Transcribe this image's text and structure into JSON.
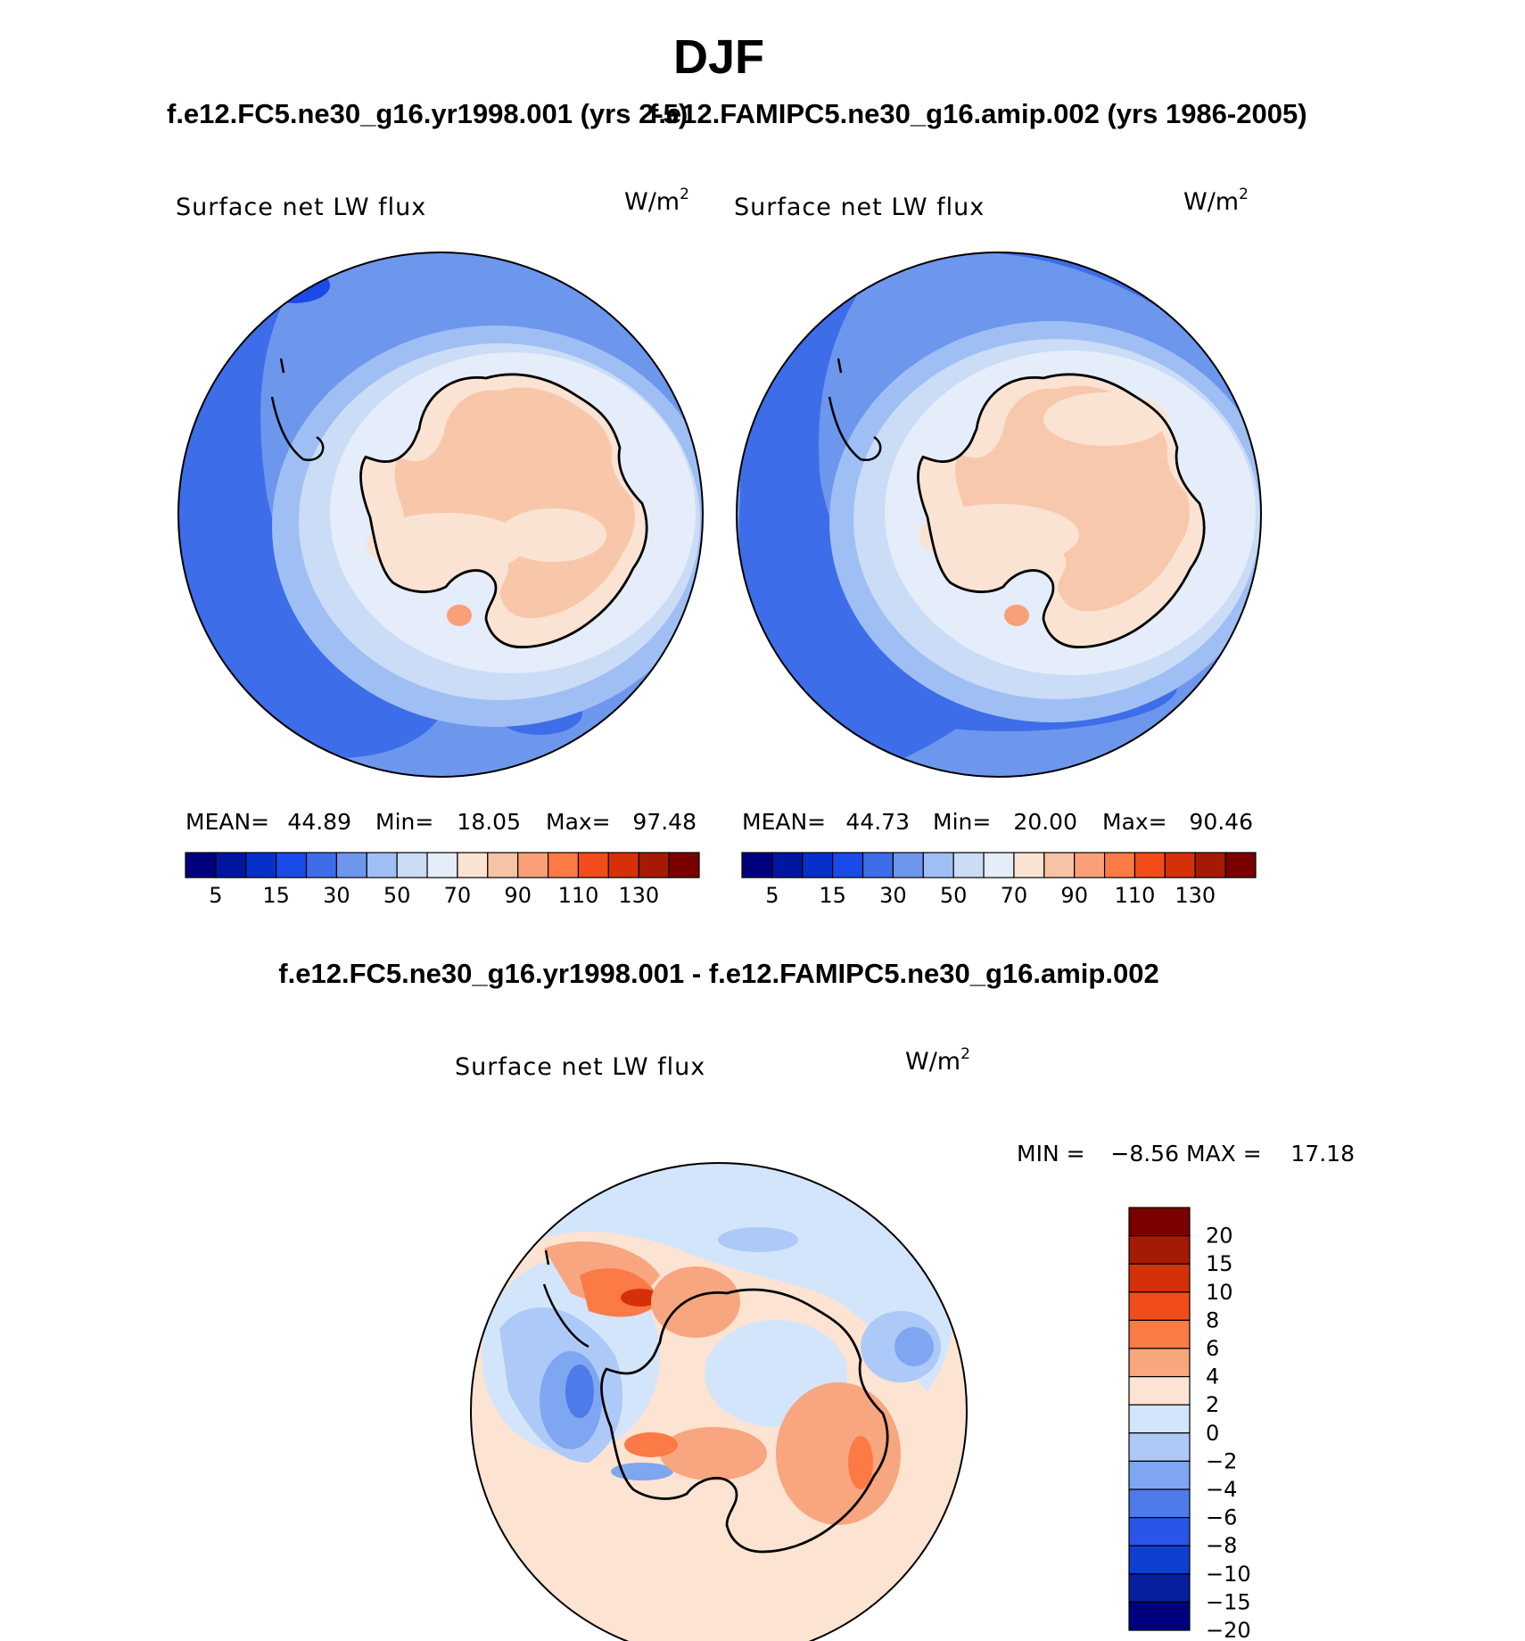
{
  "page": {
    "title": "DJF",
    "header_left": "f.e12.FC5.ne30_g16.yr1998.001 (yrs 2-5)",
    "header_right": "f.e12.FAMIPC5.ne30_g16.amip.002 (yrs 1986-2005)",
    "diff_title": "f.e12.FC5.ne30_g16.yr1998.001 - f.e12.FAMIPC5.ne30_g16.amip.002"
  },
  "panels": {
    "left": {
      "variable": "Surface net LW flux",
      "units_base": "W/m",
      "units_exp": "2",
      "stats": {
        "mean_label": "MEAN=",
        "mean": "44.89",
        "min_label": "Min=",
        "min": "18.05",
        "max_label": "Max=",
        "max": "97.48"
      }
    },
    "right": {
      "variable": "Surface net LW flux",
      "units_base": "W/m",
      "units_exp": "2",
      "stats": {
        "mean_label": "MEAN=",
        "mean": "44.73",
        "min_label": "Min=",
        "min": "20.00",
        "max_label": "Max=",
        "max": "90.46"
      }
    },
    "diff": {
      "variable": "Surface net LW flux",
      "units_base": "W/m",
      "units_exp": "2",
      "stats": {
        "min_label": "MIN =",
        "min": "−8.56",
        "max_label": "MAX =",
        "max": "17.18"
      }
    }
  },
  "chart_data": [
    {
      "type": "heatmap",
      "title": "f.e12.FC5.ne30_g16.yr1998.001 (yrs 2-5)",
      "subtitle": "Surface net LW flux",
      "units": "W/m2",
      "projection": "south polar stereographic",
      "levels": [
        5,
        10,
        15,
        20,
        30,
        40,
        50,
        60,
        70,
        80,
        90,
        100,
        110,
        120,
        130
      ],
      "level_labels": [
        "5",
        "15",
        "30",
        "50",
        "70",
        "90",
        "110",
        "130"
      ],
      "colors": [
        "#00007f",
        "#00169f",
        "#0530c9",
        "#1a4ae8",
        "#3d6de9",
        "#6d97ed",
        "#9fbff4",
        "#cadcf6",
        "#e4edf9",
        "#fbe3d3",
        "#f7c3a5",
        "#f9a078",
        "#fb7a46",
        "#f24d18",
        "#d6300b",
        "#a51a05",
        "#7a0000"
      ],
      "mean": 44.89,
      "min": 18.05,
      "max": 97.48
    },
    {
      "type": "heatmap",
      "title": "f.e12.FAMIPC5.ne30_g16.amip.002 (yrs 1986-2005)",
      "subtitle": "Surface net LW flux",
      "units": "W/m2",
      "projection": "south polar stereographic",
      "levels": [
        5,
        10,
        15,
        20,
        30,
        40,
        50,
        60,
        70,
        80,
        90,
        100,
        110,
        120,
        130
      ],
      "level_labels": [
        "5",
        "15",
        "30",
        "50",
        "70",
        "90",
        "110",
        "130"
      ],
      "colors": [
        "#00007f",
        "#00169f",
        "#0530c9",
        "#1a4ae8",
        "#3d6de9",
        "#6d97ed",
        "#9fbff4",
        "#cadcf6",
        "#e4edf9",
        "#fbe3d3",
        "#f7c3a5",
        "#f9a078",
        "#fb7a46",
        "#f24d18",
        "#d6300b",
        "#a51a05",
        "#7a0000"
      ],
      "mean": 44.73,
      "min": 20.0,
      "max": 90.46
    },
    {
      "type": "heatmap",
      "title": "f.e12.FC5.ne30_g16.yr1998.001 - f.e12.FAMIPC5.ne30_g16.amip.002",
      "subtitle": "Surface net LW flux",
      "units": "W/m2",
      "projection": "south polar stereographic",
      "levels": [
        -20,
        -15,
        -10,
        -8,
        -6,
        -4,
        -2,
        0,
        2,
        4,
        6,
        8,
        10,
        15,
        20
      ],
      "level_labels": [
        "20",
        "15",
        "10",
        "8",
        "6",
        "4",
        "2",
        "0",
        "−2",
        "−4",
        "−6",
        "−8",
        "−10",
        "−15",
        "−20"
      ],
      "colors": [
        "#7a0000",
        "#a51a05",
        "#d6300b",
        "#f24d18",
        "#fb7a46",
        "#f7a67f",
        "#fde3d2",
        "#d3e5fb",
        "#adc9f7",
        "#7fa6f0",
        "#4f7ae9",
        "#2955e8",
        "#0f3fd0",
        "#061f9f",
        "#00007f"
      ],
      "min": -8.56,
      "max": 17.18
    }
  ]
}
